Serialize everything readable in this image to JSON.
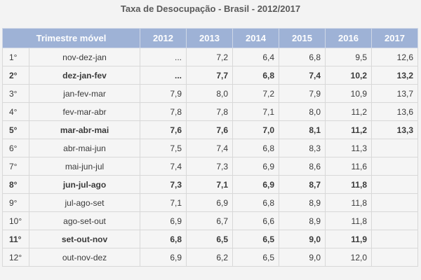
{
  "title": "Taxa de Desocupação - Brasil - 2012/2017",
  "chart_data": {
    "type": "table",
    "title": "Taxa de Desocupação - Brasil - 2012/2017",
    "columns": [
      "Trimestre móvel",
      "2012",
      "2013",
      "2014",
      "2015",
      "2016",
      "2017"
    ],
    "rows": [
      {
        "idx": "1°",
        "trimestre": "nov-dez-jan",
        "values": [
          "...",
          "7,2",
          "6,4",
          "6,8",
          "9,5",
          "12,6"
        ],
        "bold": false
      },
      {
        "idx": "2°",
        "trimestre": "dez-jan-fev",
        "values": [
          "...",
          "7,7",
          "6,8",
          "7,4",
          "10,2",
          "13,2"
        ],
        "bold": true
      },
      {
        "idx": "3°",
        "trimestre": "jan-fev-mar",
        "values": [
          "7,9",
          "8,0",
          "7,2",
          "7,9",
          "10,9",
          "13,7"
        ],
        "bold": false
      },
      {
        "idx": "4°",
        "trimestre": "fev-mar-abr",
        "values": [
          "7,8",
          "7,8",
          "7,1",
          "8,0",
          "11,2",
          "13,6"
        ],
        "bold": false
      },
      {
        "idx": "5°",
        "trimestre": "mar-abr-mai",
        "values": [
          "7,6",
          "7,6",
          "7,0",
          "8,1",
          "11,2",
          "13,3"
        ],
        "bold": true
      },
      {
        "idx": "6°",
        "trimestre": "abr-mai-jun",
        "values": [
          "7,5",
          "7,4",
          "6,8",
          "8,3",
          "11,3",
          ""
        ],
        "bold": false
      },
      {
        "idx": "7°",
        "trimestre": "mai-jun-jul",
        "values": [
          "7,4",
          "7,3",
          "6,9",
          "8,6",
          "11,6",
          ""
        ],
        "bold": false
      },
      {
        "idx": "8°",
        "trimestre": "jun-jul-ago",
        "values": [
          "7,3",
          "7,1",
          "6,9",
          "8,7",
          "11,8",
          ""
        ],
        "bold": true
      },
      {
        "idx": "9°",
        "trimestre": "jul-ago-set",
        "values": [
          "7,1",
          "6,9",
          "6,8",
          "8,9",
          "11,8",
          ""
        ],
        "bold": false
      },
      {
        "idx": "10°",
        "trimestre": "ago-set-out",
        "values": [
          "6,9",
          "6,7",
          "6,6",
          "8,9",
          "11,8",
          ""
        ],
        "bold": false
      },
      {
        "idx": "11°",
        "trimestre": "set-out-nov",
        "values": [
          "6,8",
          "6,5",
          "6,5",
          "9,0",
          "11,9",
          ""
        ],
        "bold": true
      },
      {
        "idx": "12°",
        "trimestre": "out-nov-dez",
        "values": [
          "6,9",
          "6,2",
          "6,5",
          "9,0",
          "12,0",
          ""
        ],
        "bold": false
      }
    ]
  },
  "colors": {
    "header_bg": "#9eb2d6",
    "header_text": "#ffffff",
    "title_text": "#5a5a5a",
    "cell_bg": "#f5f5f5"
  }
}
